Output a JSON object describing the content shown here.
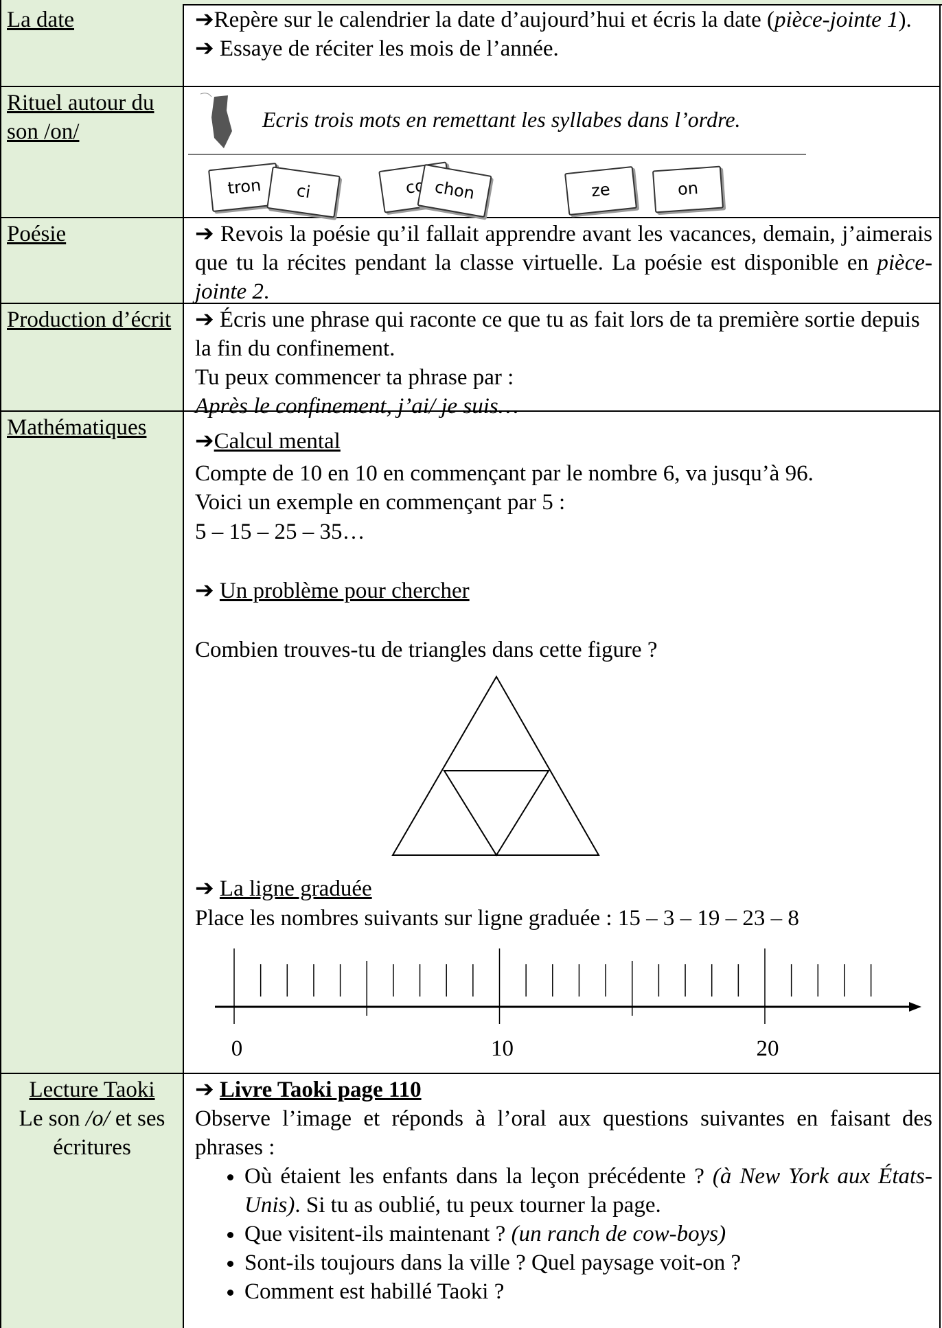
{
  "rows": [
    {
      "label": "La date",
      "paragraphs": [
        [
          "➔Repère sur le calendrier la date d’aujourd’hui et écris la date (",
          "pièce-jointe 1",
          ")."
        ],
        [
          "➔ Essaye de réciter les mois de l’année."
        ]
      ]
    },
    {
      "label": "Rituel autour du son /on/",
      "instruction": "Ecris trois mots en remettant les syllabes dans l’ordre.",
      "syllables": [
        "tron",
        "ci",
        "co",
        "chon",
        "ze",
        "on"
      ]
    },
    {
      "label": "Poésie",
      "paragraphs": [
        [
          "➔ Revois la poésie qu’il fallait apprendre avant les vacances, demain, j’aimerais que tu la récites pendant la classe virtuelle. La poésie est disponible en ",
          "pièce-jointe 2",
          "."
        ]
      ]
    },
    {
      "label": "Production d’écrit",
      "paragraphs": [
        [
          "➔ Écris une phrase qui raconte ce que tu as fait lors de ta première sortie depuis la fin du confinement."
        ],
        [
          "Tu peux commencer ta phrase par :"
        ],
        [
          "Après le confinement, j’ai/ je suis…"
        ]
      ]
    },
    {
      "label": "Mathématiques",
      "paragraphs": [
        [
          "➔",
          "Calcul mental"
        ],
        [
          "Compte de 10 en 10 en commençant par le nombre 6, va jusqu’à 96."
        ],
        [
          "Voici un exemple en commençant par 5 :"
        ],
        [
          "5 – 15 – 25 – 35…"
        ],
        [
          "➔ ",
          "Un problème pour chercher"
        ],
        [
          "Combien trouves-tu de triangles dans cette figure ?"
        ],
        [
          "➔ ",
          "La ligne graduée"
        ],
        [
          "Place les nombres suivants sur ligne graduée : 15 – 3 – 19 – 23 – 8"
        ]
      ],
      "number_line_labels": [
        "0",
        "10",
        "20"
      ]
    },
    {
      "label": [
        "Lecture Taoki",
        "Le son ",
        "/o/",
        " et ses écritures"
      ],
      "paragraphs": [
        [
          "➔ ",
          "Livre Taoki page 110"
        ],
        [
          "Observe l’image et réponds à l’oral aux questions suivantes en faisant des phrases :"
        ]
      ],
      "bullets": [
        [
          "Où étaient les enfants dans la leçon précédente ? ",
          "(à New York aux États-Unis)",
          ". Si tu as oublié, tu peux tourner la page."
        ],
        [
          "Que visitent-ils maintenant ? ",
          "(un ranch de cow-boys)"
        ],
        [
          "Sont-ils toujours dans la ville ? Quel paysage voit-on ?"
        ],
        [
          "Comment est habillé Taoki ?"
        ]
      ]
    }
  ]
}
